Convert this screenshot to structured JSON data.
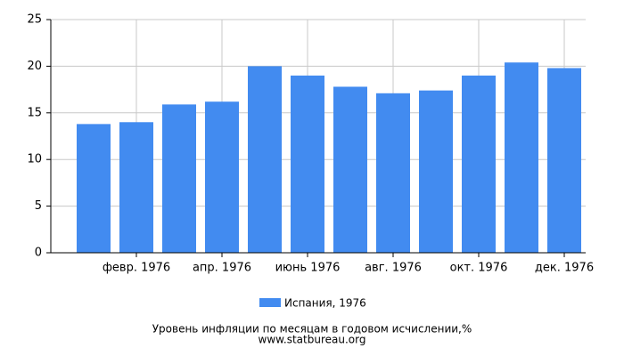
{
  "chart_data": {
    "type": "bar",
    "categories": [
      null,
      "февр. 1976",
      null,
      "апр. 1976",
      null,
      "июнь 1976",
      null,
      "авг. 1976",
      null,
      "окт. 1976",
      null,
      "дек. 1976"
    ],
    "series": [
      {
        "name": "Испания, 1976",
        "color": "#428bf0",
        "values": [
          13.8,
          14.0,
          15.9,
          16.2,
          20.0,
          19.0,
          17.8,
          17.1,
          17.4,
          19.0,
          20.4,
          19.8
        ]
      }
    ],
    "ylim": [
      0,
      25
    ],
    "yticks": [
      0,
      5,
      10,
      15,
      20,
      25
    ],
    "grid": true,
    "title": "Уровень инфляции по месяцам в годовом исчислении,%",
    "subtitle": "www.statbureau.org"
  }
}
